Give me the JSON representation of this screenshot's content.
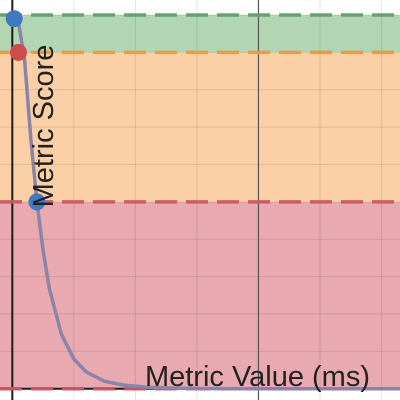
{
  "chart_data": {
    "type": "line",
    "xlabel": "Metric Value (ms)",
    "ylabel": "Metric Score",
    "xlim": [
      -200,
      6300
    ],
    "ylim": [
      -0.03,
      1.04
    ],
    "grid": true,
    "x_axis_at_y": 0,
    "y_axis_at_x": 4000,
    "bands": [
      {
        "from": 0.0,
        "to": 0.5,
        "color": "#e8aab0",
        "edge_color": "#c75a63"
      },
      {
        "from": 0.5,
        "to": 0.9,
        "color": "#fbd0a7",
        "edge_color": "#e59a4d"
      },
      {
        "from": 0.9,
        "to": 1.0,
        "color": "#b2d6b2",
        "edge_color": "#5fa06b"
      }
    ],
    "thresholds": [
      {
        "y": 0.0,
        "color": "#c75a63"
      },
      {
        "y": 0.5,
        "color": "#c75a63"
      },
      {
        "y": 0.9,
        "color": "#e59a4d"
      },
      {
        "y": 1.0,
        "color": "#5fa06b"
      }
    ],
    "series": [
      {
        "color": "#8a84a8",
        "x": [
          30,
          100,
          200,
          300,
          400,
          500,
          600,
          800,
          1000,
          1200,
          1500,
          1800,
          2200,
          2700,
          3200,
          4000,
          5000,
          6300
        ],
        "y": [
          0.999,
          0.98,
          0.88,
          0.67,
          0.5,
          0.37,
          0.27,
          0.145,
          0.08,
          0.045,
          0.02,
          0.01,
          0.004,
          0.0015,
          0.0006,
          0.0001,
          0.0,
          0.0
        ]
      }
    ],
    "points": [
      {
        "x": 30,
        "y": 0.99,
        "color": "#3f7ac0"
      },
      {
        "x": 100,
        "y": 0.9,
        "color": "#cc4d4d"
      },
      {
        "x": 400,
        "y": 0.5,
        "color": "#3f7ac0"
      }
    ]
  }
}
